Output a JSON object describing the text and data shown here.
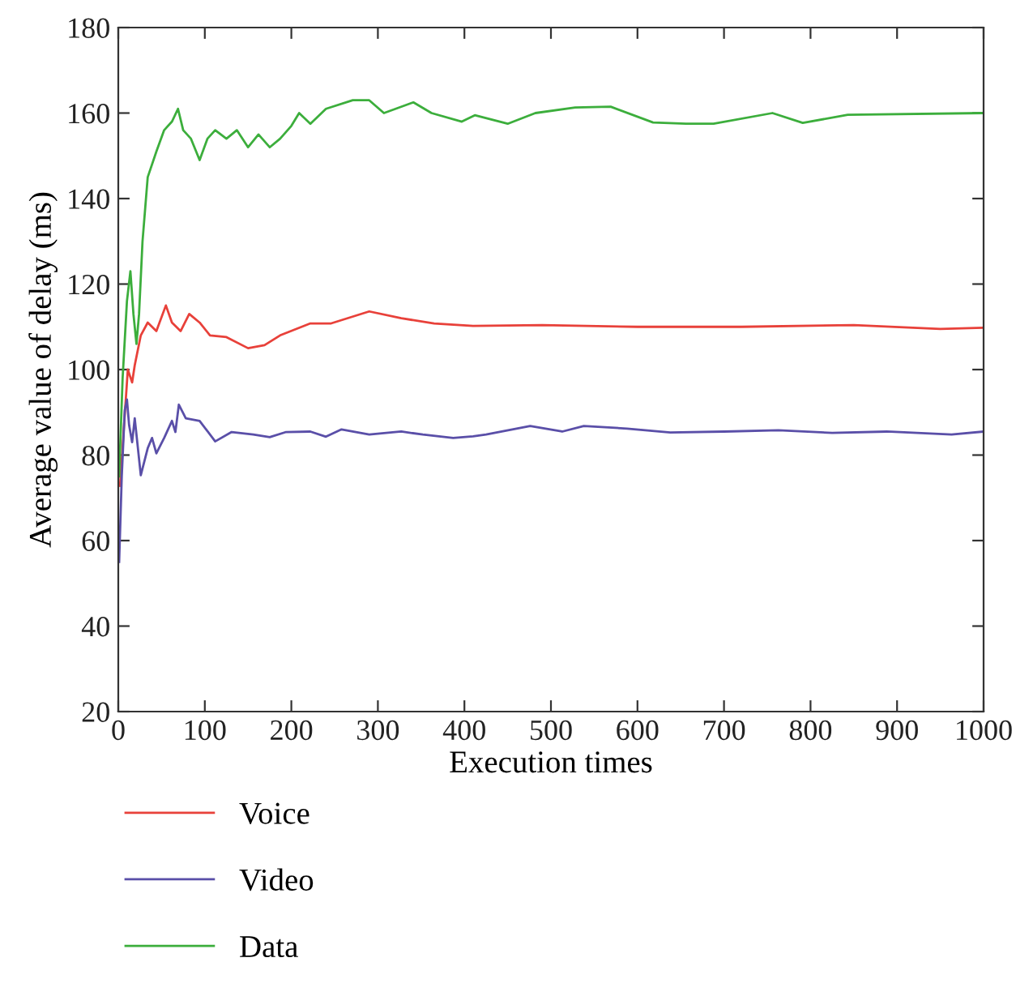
{
  "chart_data": {
    "type": "line",
    "xlabel": "Execution times",
    "ylabel": "Average value of delay (ms)",
    "xlim": [
      0,
      1000
    ],
    "ylim": [
      20,
      180
    ],
    "xticks": [
      0,
      100,
      200,
      300,
      400,
      500,
      600,
      700,
      800,
      900,
      1000
    ],
    "yticks": [
      20,
      40,
      60,
      80,
      100,
      120,
      140,
      160,
      180
    ],
    "grid": false,
    "legend": "bottom",
    "marker": "none",
    "line_style": "solid",
    "series": [
      {
        "name": "Voice",
        "color": "#e8413a",
        "x": [
          2,
          6,
          11,
          16,
          19,
          26,
          34,
          44,
          55,
          62,
          72,
          82,
          94,
          106,
          125,
          150,
          169,
          187,
          222,
          246,
          290,
          327,
          365,
          410,
          490,
          600,
          720,
          850,
          950,
          1000
        ],
        "values": [
          72.8,
          85,
          100,
          97,
          101,
          108,
          111,
          109,
          115,
          111,
          109,
          113,
          111,
          108,
          107.6,
          105,
          105.7,
          108,
          110.8,
          110.8,
          113.6,
          112,
          110.8,
          110.2,
          110.4,
          110,
          110,
          110.4,
          109.5,
          109.8
        ]
      },
      {
        "name": "Video",
        "color": "#5a4fa8",
        "x": [
          1,
          4,
          7.5,
          10,
          12.5,
          16,
          19,
          26,
          34,
          39,
          44,
          53,
          62,
          66,
          70,
          78,
          94,
          112,
          131,
          156,
          175,
          194,
          222,
          240,
          258,
          290,
          327,
          352,
          387,
          410,
          425,
          476,
          513,
          538,
          588,
          638,
          700,
          763,
          825,
          888,
          963,
          1000
        ],
        "values": [
          55,
          75,
          90.5,
          93,
          87,
          83,
          88.6,
          75.3,
          81.6,
          84,
          80.4,
          84,
          88,
          85.4,
          91.8,
          88.6,
          88,
          83.2,
          85.4,
          84.8,
          84.2,
          85.4,
          85.5,
          84.3,
          86,
          84.8,
          85.5,
          84.8,
          84,
          84.4,
          84.8,
          86.8,
          85.5,
          86.8,
          86.2,
          85.3,
          85.5,
          85.8,
          85.2,
          85.5,
          84.8,
          85.5
        ]
      },
      {
        "name": "Data",
        "color": "#3cae3c",
        "x": [
          1,
          5,
          10,
          14,
          17.5,
          21,
          24,
          28,
          34,
          44,
          53,
          62,
          69,
          75,
          84,
          94,
          103,
          112,
          125,
          137,
          150,
          162,
          175,
          187,
          200,
          209,
          222,
          240,
          271,
          290,
          307,
          341,
          362,
          397,
          412,
          450,
          482,
          528,
          569,
          618,
          656,
          688,
          756,
          791,
          843,
          1000
        ],
        "values": [
          75,
          98,
          116,
          123,
          113,
          106,
          113,
          130,
          145,
          151,
          156,
          158,
          161,
          156,
          154,
          149,
          154,
          156,
          154,
          156,
          152,
          155,
          152,
          154,
          157,
          160,
          157.5,
          161,
          163,
          163,
          160,
          162.5,
          160,
          158,
          159.5,
          157.5,
          160,
          161.3,
          161.5,
          157.8,
          157.5,
          157.5,
          160,
          157.7,
          159.6,
          160
        ]
      }
    ]
  }
}
